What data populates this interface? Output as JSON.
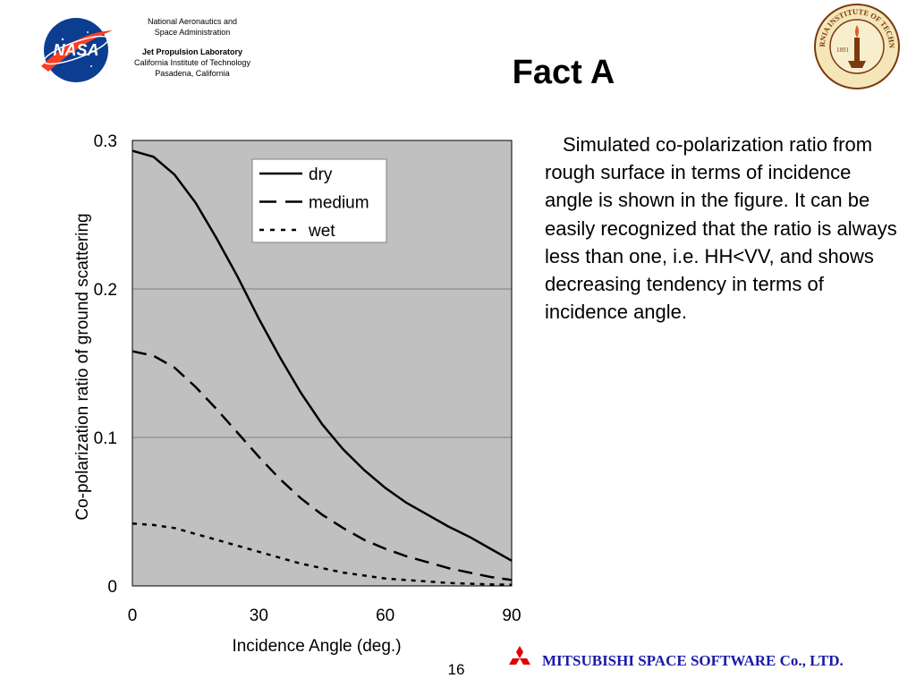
{
  "header": {
    "agency_line1": "National Aeronautics and",
    "agency_line2": "Space Administration",
    "lab_name": "Jet Propulsion Laboratory",
    "institute": "California Institute of Technology",
    "location": "Pasadena, California",
    "nasa_logo_text": "NASA",
    "caltech_seal_text": "CALIFORNIA INSTITUTE OF TECHNOLOGY",
    "caltech_seal_year": "1891"
  },
  "slide": {
    "title": "Fact A",
    "description": "Simulated co-polarization ratio from rough surface in terms of incidence angle is shown in the figure. It can be easily recognized that the ratio is always less than one, i.e. HH<VV, and shows decreasing tendency in terms of incidence angle."
  },
  "chart_data": {
    "type": "line",
    "title": "",
    "xlabel": "Incidence Angle (deg.)",
    "ylabel": "Co-polarization ratio of ground scattering",
    "xlim": [
      0,
      90
    ],
    "ylim": [
      0,
      0.3
    ],
    "xticks": [
      "0",
      "30",
      "60",
      "90"
    ],
    "yticks": [
      "0",
      "0.1",
      "0.2",
      "0.3"
    ],
    "grid": "horizontal",
    "legend_position": "top-center",
    "plot_background": "#c0c0c0",
    "series": [
      {
        "name": "dry",
        "style": "solid",
        "x": [
          0,
          5,
          10,
          15,
          20,
          25,
          30,
          35,
          40,
          45,
          50,
          55,
          60,
          65,
          70,
          75,
          80,
          85,
          90
        ],
        "y": [
          0.293,
          0.289,
          0.277,
          0.258,
          0.234,
          0.208,
          0.18,
          0.154,
          0.13,
          0.109,
          0.092,
          0.078,
          0.066,
          0.056,
          0.048,
          0.04,
          0.033,
          0.025,
          0.017
        ]
      },
      {
        "name": "medium",
        "style": "dashed",
        "x": [
          0,
          5,
          10,
          15,
          20,
          25,
          30,
          35,
          40,
          45,
          50,
          55,
          60,
          65,
          70,
          75,
          80,
          85,
          90
        ],
        "y": [
          0.158,
          0.155,
          0.147,
          0.134,
          0.119,
          0.103,
          0.087,
          0.072,
          0.059,
          0.048,
          0.039,
          0.031,
          0.025,
          0.02,
          0.016,
          0.012,
          0.009,
          0.006,
          0.004
        ]
      },
      {
        "name": "wet",
        "style": "dotted",
        "x": [
          0,
          5,
          10,
          15,
          20,
          25,
          30,
          35,
          40,
          45,
          50,
          55,
          60,
          65,
          70,
          75,
          80,
          85,
          90
        ],
        "y": [
          0.042,
          0.041,
          0.039,
          0.035,
          0.031,
          0.027,
          0.023,
          0.019,
          0.015,
          0.012,
          0.009,
          0.007,
          0.005,
          0.004,
          0.003,
          0.002,
          0.0015,
          0.001,
          0.0008
        ]
      }
    ]
  },
  "footer": {
    "page_number": "16",
    "company": "MITSUBISHI SPACE SOFTWARE Co., LTD.",
    "company_color": "#1a1aa8",
    "mitsubishi_logo_color": "#e00000"
  }
}
